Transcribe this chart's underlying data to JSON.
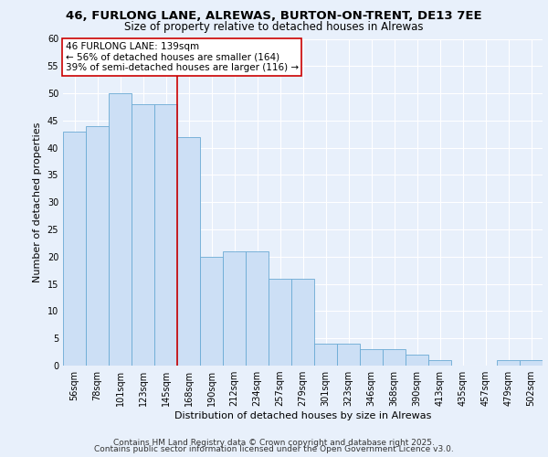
{
  "title_line1": "46, FURLONG LANE, ALREWAS, BURTON-ON-TRENT, DE13 7EE",
  "title_line2": "Size of property relative to detached houses in Alrewas",
  "xlabel": "Distribution of detached houses by size in Alrewas",
  "ylabel": "Number of detached properties",
  "categories": [
    "56sqm",
    "78sqm",
    "101sqm",
    "123sqm",
    "145sqm",
    "168sqm",
    "190sqm",
    "212sqm",
    "234sqm",
    "257sqm",
    "279sqm",
    "301sqm",
    "323sqm",
    "346sqm",
    "368sqm",
    "390sqm",
    "413sqm",
    "435sqm",
    "457sqm",
    "479sqm",
    "502sqm"
  ],
  "values": [
    43,
    44,
    50,
    48,
    48,
    42,
    20,
    21,
    21,
    16,
    16,
    4,
    4,
    3,
    3,
    2,
    1,
    0,
    0,
    1,
    1
  ],
  "bar_color": "#ccdff5",
  "bar_edge_color": "#6aaad4",
  "background_color": "#e8f0fb",
  "grid_color": "#ffffff",
  "annotation_text": "46 FURLONG LANE: 139sqm\n← 56% of detached houses are smaller (164)\n39% of semi-detached houses are larger (116) →",
  "annotation_box_color": "#ffffff",
  "annotation_border_color": "#cc0000",
  "vline_color": "#cc0000",
  "vline_x": 4.5,
  "ylim": [
    0,
    60
  ],
  "yticks": [
    0,
    5,
    10,
    15,
    20,
    25,
    30,
    35,
    40,
    45,
    50,
    55,
    60
  ],
  "footer_line1": "Contains HM Land Registry data © Crown copyright and database right 2025.",
  "footer_line2": "Contains public sector information licensed under the Open Government Licence v3.0.",
  "title_fontsize": 9.5,
  "subtitle_fontsize": 8.5,
  "axis_label_fontsize": 8,
  "tick_fontsize": 7,
  "annotation_fontsize": 7.5,
  "footer_fontsize": 6.5
}
